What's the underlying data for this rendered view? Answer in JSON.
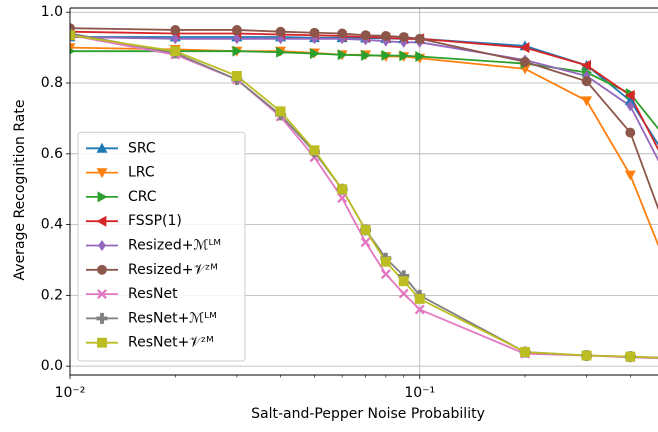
{
  "chart_data": {
    "type": "line",
    "xlabel": "Salt-and-Pepper Noise Probability",
    "ylabel": "Average Recognition Rate",
    "log_x": true,
    "grid": true,
    "legend": "lower left",
    "x": [
      0.01,
      0.02,
      0.03,
      0.04,
      0.05,
      0.06,
      0.07,
      0.08,
      0.09,
      0.1,
      0.2,
      0.3,
      0.4,
      0.5
    ],
    "xlim": [
      0.01,
      0.48
    ],
    "xticks": [
      {
        "value": 0.01,
        "label": "10⁻²"
      },
      {
        "value": 0.1,
        "label": "10⁻¹"
      }
    ],
    "xminor_ticks": [
      0.02,
      0.03,
      0.04,
      0.05,
      0.06,
      0.07,
      0.08,
      0.09,
      0.2,
      0.3,
      0.4
    ],
    "ylim": [
      -0.025,
      1.012
    ],
    "yticks": [
      {
        "value": 0,
        "label": "0.0"
      },
      0.2,
      0.4,
      0.6,
      0.8,
      {
        "value": 1,
        "label": "1.0"
      }
    ],
    "series": [
      {
        "name": "SRC",
        "color": "#1f77b4",
        "marker": "^",
        "values": [
          0.93,
          0.93,
          0.93,
          0.93,
          0.928,
          0.928,
          0.927,
          0.926,
          0.925,
          0.925,
          0.905,
          0.85,
          0.75,
          0.6
        ]
      },
      {
        "name": "LRC",
        "color": "#ff7f0e",
        "marker": "v",
        "values": [
          0.9,
          0.895,
          0.89,
          0.89,
          0.885,
          0.88,
          0.88,
          0.875,
          0.875,
          0.87,
          0.84,
          0.75,
          0.54,
          0.3
        ]
      },
      {
        "name": "CRC",
        "color": "#2ca02c",
        "marker": ">",
        "values": [
          0.89,
          0.89,
          0.89,
          0.887,
          0.883,
          0.88,
          0.878,
          0.878,
          0.877,
          0.875,
          0.855,
          0.83,
          0.77,
          0.65
        ]
      },
      {
        "name": "FSSP(1)",
        "color": "#d62728",
        "marker": "<",
        "values": [
          0.945,
          0.94,
          0.94,
          0.937,
          0.935,
          0.933,
          0.93,
          0.928,
          0.925,
          0.925,
          0.9,
          0.85,
          0.765,
          0.58
        ]
      },
      {
        "name": "Resized+ℳᴸᴹ",
        "color": "#9467bd",
        "marker": "D",
        "values": [
          0.93,
          0.925,
          0.925,
          0.925,
          0.925,
          0.925,
          0.922,
          0.918,
          0.915,
          0.915,
          0.865,
          0.82,
          0.735,
          0.55
        ]
      },
      {
        "name": "Resized+𝒱ᶻᴹ",
        "color": "#8c564b",
        "marker": "o",
        "values": [
          0.955,
          0.95,
          0.95,
          0.945,
          0.942,
          0.94,
          0.935,
          0.933,
          0.93,
          0.925,
          0.86,
          0.805,
          0.66,
          0.4
        ]
      },
      {
        "name": "ResNet",
        "color": "#e377c2",
        "marker": "X",
        "values": [
          0.935,
          0.88,
          0.81,
          0.705,
          0.59,
          0.475,
          0.35,
          0.26,
          0.205,
          0.16,
          0.035,
          0.03,
          0.025,
          0.022
        ]
      },
      {
        "name": "ResNet+ℳᴸᴹ",
        "color": "#7f7f7f",
        "marker": "P",
        "values": [
          0.94,
          0.885,
          0.81,
          0.71,
          0.605,
          0.5,
          0.385,
          0.305,
          0.255,
          0.2,
          0.04,
          0.03,
          0.027,
          0.024
        ]
      },
      {
        "name": "ResNet+𝒱ᶻᴹ",
        "color": "#bcbd22",
        "marker": "s",
        "values": [
          0.935,
          0.89,
          0.82,
          0.72,
          0.61,
          0.5,
          0.385,
          0.295,
          0.24,
          0.19,
          0.04,
          0.03,
          0.027,
          0.023
        ]
      }
    ]
  }
}
